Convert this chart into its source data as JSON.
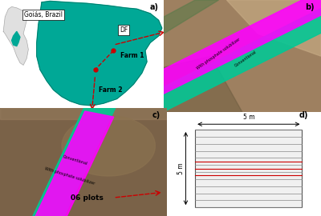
{
  "panel_labels": [
    "a)",
    "b)",
    "c)",
    "d)"
  ],
  "goias_label": "Goiás, Brazil",
  "df_label": "DF",
  "farm1_label": "Farm 1",
  "farm2_label": "Farm 2",
  "plots_label": "06 plots",
  "dim_5m_top": "5 m",
  "dim_5m_side": "5 m",
  "conventional_label": "Conventional",
  "phosphate_label": "With phosphate solubilizer",
  "map_color": "#00A896",
  "strip_green": "#00C896",
  "strip_pink": "#FF00FF",
  "bg_color": "#ffffff",
  "arrow_color": "#cc0000",
  "aerial_b_bg": "#8B7355",
  "aerial_c_bg": "#7a6248",
  "n_lines_d": 11,
  "red_line_rows": [
    4,
    5,
    6
  ]
}
